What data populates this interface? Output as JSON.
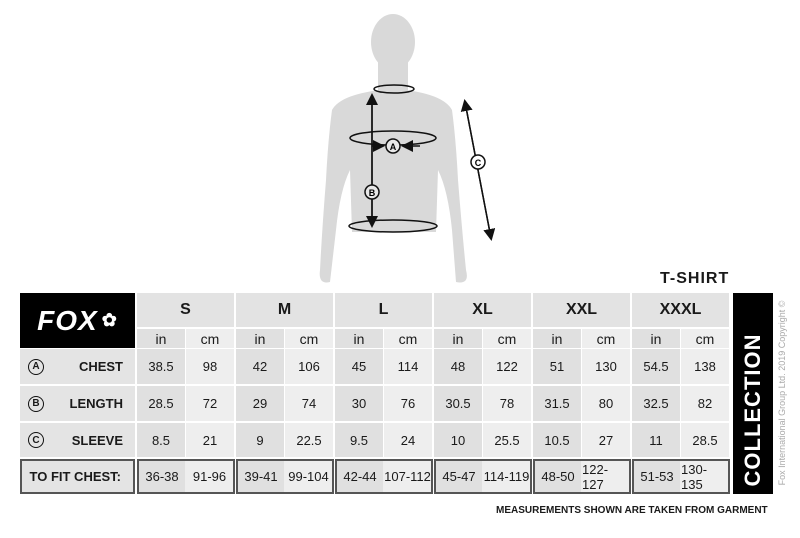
{
  "title": "T-SHIRT",
  "brand": "FOX",
  "side_label": "COLLECTION",
  "copyright": "Fox International Group Ltd. 2019 Copyright ©",
  "footer": "MEASUREMENTS SHOWN ARE TAKEN FROM GARMENT",
  "diagram_markers": [
    "A",
    "B",
    "C"
  ],
  "units": {
    "in": "in",
    "cm": "cm"
  },
  "sizes": [
    "S",
    "M",
    "L",
    "XL",
    "XXL",
    "XXXL"
  ],
  "rows": [
    {
      "marker": "A",
      "label": "CHEST",
      "values": [
        [
          "38.5",
          "98"
        ],
        [
          "42",
          "106"
        ],
        [
          "45",
          "114"
        ],
        [
          "48",
          "122"
        ],
        [
          "51",
          "130"
        ],
        [
          "54.5",
          "138"
        ]
      ]
    },
    {
      "marker": "B",
      "label": "LENGTH",
      "values": [
        [
          "28.5",
          "72"
        ],
        [
          "29",
          "74"
        ],
        [
          "30",
          "76"
        ],
        [
          "30.5",
          "78"
        ],
        [
          "31.5",
          "80"
        ],
        [
          "32.5",
          "82"
        ]
      ]
    },
    {
      "marker": "C",
      "label": "SLEEVE",
      "values": [
        [
          "8.5",
          "21"
        ],
        [
          "9",
          "22.5"
        ],
        [
          "9.5",
          "24"
        ],
        [
          "10",
          "25.5"
        ],
        [
          "10.5",
          "27"
        ],
        [
          "11",
          "28.5"
        ]
      ]
    }
  ],
  "fit": {
    "label": "TO FIT CHEST:",
    "values": [
      [
        "36-38",
        "91-96"
      ],
      [
        "39-41",
        "99-104"
      ],
      [
        "42-44",
        "107-112"
      ],
      [
        "45-47",
        "114-119"
      ],
      [
        "48-50",
        "122-127"
      ],
      [
        "51-53",
        "130-135"
      ]
    ]
  }
}
